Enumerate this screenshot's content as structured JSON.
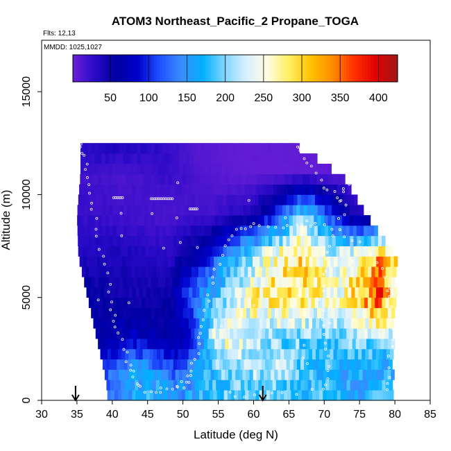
{
  "chart_data": {
    "type": "heatmap",
    "title": "ATOM3 Northeast_Pacific_2 Propane_TOGA",
    "subtitle_flights": "Flts: 12,13",
    "subtitle_dates": "MMDD: 1025,1027",
    "xlabel": "Latitude (deg N)",
    "ylabel": "Altitude (m)",
    "xlim": [
      30,
      85
    ],
    "ylim": [
      0,
      17500
    ],
    "x_ticks": [
      "30",
      "35",
      "40",
      "45",
      "50",
      "55",
      "60",
      "65",
      "70",
      "75",
      "80",
      "85"
    ],
    "y_ticks": [
      "0",
      "5000",
      "10000",
      "15000"
    ],
    "colorbar": {
      "range": [
        1,
        425
      ],
      "ticks": [
        "50",
        "100",
        "150",
        "200",
        "250",
        "300",
        "350",
        "400"
      ],
      "colors": [
        "#6a1fd6",
        "#2a0ac8",
        "#0000a0",
        "#0000cd",
        "#1f4fff",
        "#3a8cff",
        "#00b0ff",
        "#7fd6ff",
        "#d6f0ff",
        "#fffce0",
        "#ffef60",
        "#ffc000",
        "#ff8c00",
        "#ff3000",
        "#e00000",
        "#a01818"
      ]
    },
    "arrows_lat": [
      34.8,
      61.3
    ],
    "field": {
      "lat_range": [
        35,
        80
      ],
      "alt_step": 500,
      "description_rows": [
        {
          "alt": 500,
          "lat_min": 39.3,
          "lat_max": 79.5,
          "values_by_lat": [
            [
              39,
              130
            ],
            [
              45,
              175
            ],
            [
              50,
              150
            ],
            [
              55,
              185
            ],
            [
              60,
              200
            ],
            [
              65,
              190
            ],
            [
              70,
              180
            ],
            [
              75,
              160
            ],
            [
              80,
              185
            ]
          ]
        },
        {
          "alt": 1500,
          "lat_min": 38.8,
          "lat_max": 79.5,
          "values_by_lat": [
            [
              38,
              105
            ],
            [
              44,
              160
            ],
            [
              49,
              110
            ],
            [
              53,
              170
            ],
            [
              58,
              210
            ],
            [
              63,
              225
            ],
            [
              68,
              180
            ],
            [
              74,
              165
            ],
            [
              80,
              170
            ]
          ]
        },
        {
          "alt": 3000,
          "lat_min": 37.8,
          "lat_max": 79.5,
          "values_by_lat": [
            [
              38,
              60
            ],
            [
              43,
              80
            ],
            [
              47,
              60
            ],
            [
              51,
              70
            ],
            [
              55,
              260
            ],
            [
              59,
              230
            ],
            [
              64,
              200
            ],
            [
              70,
              190
            ],
            [
              76,
              210
            ],
            [
              80,
              200
            ]
          ]
        },
        {
          "alt": 5000,
          "lat_min": 36.5,
          "lat_max": 80,
          "values_by_lat": [
            [
              36,
              60
            ],
            [
              42,
              45
            ],
            [
              48,
              50
            ],
            [
              52,
              140
            ],
            [
              56,
              210
            ],
            [
              61,
              280
            ],
            [
              67,
              290
            ],
            [
              72,
              250
            ],
            [
              76,
              330
            ],
            [
              78,
              370
            ],
            [
              80,
              260
            ]
          ]
        },
        {
          "alt": 7000,
          "lat_min": 35.2,
          "lat_max": 80,
          "values_by_lat": [
            [
              35,
              35
            ],
            [
              41,
              40
            ],
            [
              48,
              30
            ],
            [
              53,
              80
            ],
            [
              57,
              160
            ],
            [
              62,
              250
            ],
            [
              67,
              300
            ],
            [
              71,
              230
            ],
            [
              75,
              260
            ],
            [
              78,
              340
            ],
            [
              80,
              280
            ]
          ]
        },
        {
          "alt": 9000,
          "lat_min": 35,
          "lat_max": 76,
          "values_by_lat": [
            [
              35,
              25
            ],
            [
              42,
              20
            ],
            [
              48,
              15
            ],
            [
              54,
              20
            ],
            [
              60,
              40
            ],
            [
              64,
              120
            ],
            [
              67,
              200
            ],
            [
              70,
              130
            ],
            [
              74,
              40
            ],
            [
              76,
              30
            ]
          ]
        },
        {
          "alt": 11000,
          "lat_min": 35.5,
          "lat_max": 72,
          "values_by_lat": [
            [
              35,
              20
            ],
            [
              42,
              15
            ],
            [
              48,
              25
            ],
            [
              54,
              10
            ],
            [
              58,
              5
            ],
            [
              62,
              5
            ],
            [
              66,
              5
            ],
            [
              70,
              5
            ],
            [
              72,
              5
            ]
          ]
        },
        {
          "alt": 12300,
          "lat_min": 35.5,
          "lat_max": 66,
          "values_by_lat": [
            [
              35,
              30
            ],
            [
              40,
              35
            ],
            [
              46,
              30
            ],
            [
              52,
              10
            ],
            [
              58,
              5
            ],
            [
              62,
              5
            ],
            [
              66,
              5
            ]
          ]
        }
      ]
    }
  }
}
